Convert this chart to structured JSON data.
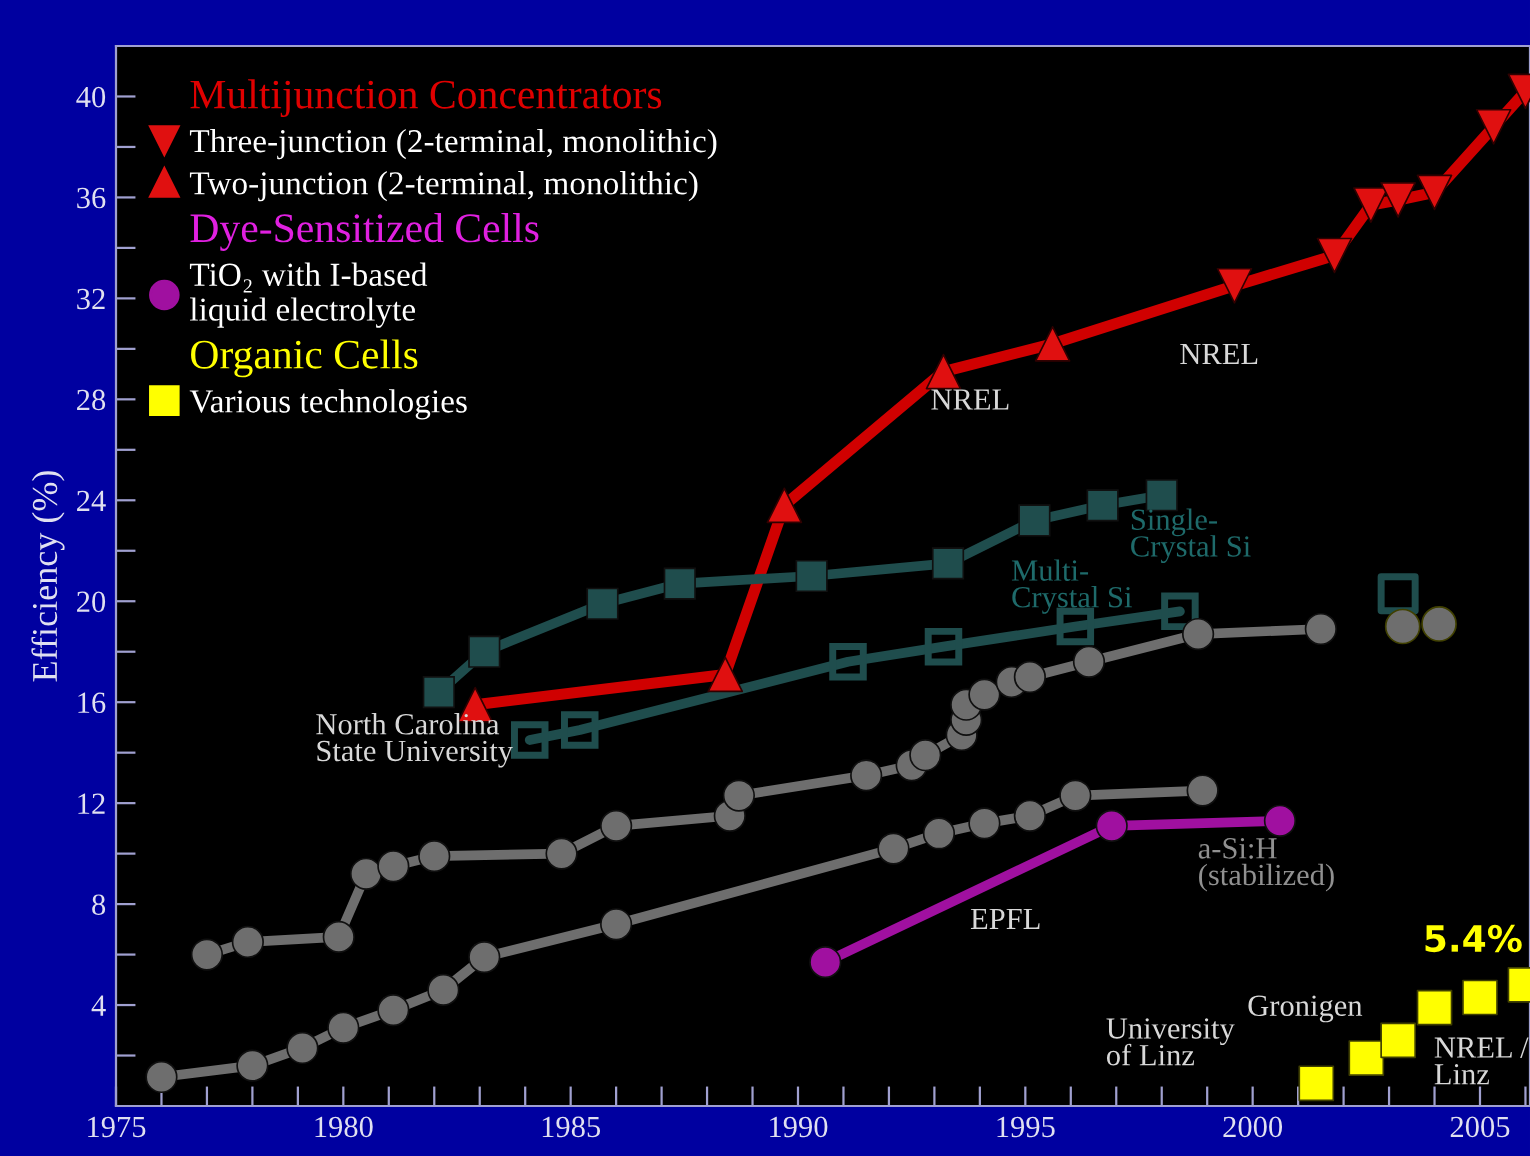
{
  "chart_data": {
    "type": "line",
    "ylabel": "Efficiency (%)",
    "xlim": [
      1975,
      2006.1
    ],
    "ylim": [
      0,
      42
    ],
    "xticks": [
      1975,
      {
        "value": 1976,
        "label": null
      },
      {
        "value": 1977,
        "label": null
      },
      {
        "value": 1978,
        "label": null
      },
      {
        "value": 1979,
        "label": null
      },
      1980,
      {
        "value": 1981,
        "label": null
      },
      {
        "value": 1982,
        "label": null
      },
      {
        "value": 1983,
        "label": null
      },
      {
        "value": 1984,
        "label": null
      },
      1985,
      {
        "value": 1986,
        "label": null
      },
      {
        "value": 1987,
        "label": null
      },
      {
        "value": 1988,
        "label": null
      },
      {
        "value": 1989,
        "label": null
      },
      1990,
      {
        "value": 1991,
        "label": null
      },
      {
        "value": 1992,
        "label": null
      },
      {
        "value": 1993,
        "label": null
      },
      {
        "value": 1994,
        "label": null
      },
      1995,
      {
        "value": 1996,
        "label": null
      },
      {
        "value": 1997,
        "label": null
      },
      {
        "value": 1998,
        "label": null
      },
      {
        "value": 1999,
        "label": null
      },
      2000,
      {
        "value": 2001,
        "label": null
      },
      {
        "value": 2002,
        "label": null
      },
      {
        "value": 2003,
        "label": null
      },
      {
        "value": 2004,
        "label": null
      },
      2005,
      {
        "value": 2006,
        "label": null
      }
    ],
    "yticks": [
      {
        "value": 2,
        "label": null
      },
      4,
      {
        "value": 6,
        "label": null
      },
      8,
      {
        "value": 10,
        "label": null
      },
      12,
      {
        "value": 14,
        "label": null
      },
      16,
      {
        "value": 18,
        "label": null
      },
      20,
      {
        "value": 22,
        "label": null
      },
      24,
      {
        "value": 26,
        "label": null
      },
      28,
      {
        "value": 30,
        "label": null
      },
      32,
      {
        "value": 34,
        "label": null
      },
      36,
      {
        "value": 38,
        "label": null
      },
      40
    ],
    "grid": false,
    "legend": "top left",
    "series": [
      {
        "color": "#d00000",
        "marker": "none",
        "x": [
          1982.9,
          1988.4,
          1989.7,
          1993.2,
          1995.6,
          1999.6,
          2001.8,
          2002.6,
          2003.2,
          2004.0,
          2005.3,
          2006.0
        ],
        "values": [
          15.9,
          17.1,
          23.8,
          29.1,
          30.2,
          32.5,
          33.7,
          35.7,
          35.9,
          36.2,
          38.8,
          40.2
        ]
      },
      {
        "type": "scatter",
        "name": "Three-junction (2-terminal, monolithic)",
        "color": "#e01010",
        "marker": "triangle_down",
        "x": [
          1999.6,
          2001.8,
          2002.6,
          2003.2,
          2004.0,
          2005.3,
          2006.0
        ],
        "values": [
          32.5,
          33.7,
          35.7,
          35.9,
          36.2,
          38.8,
          40.2
        ]
      },
      {
        "type": "scatter",
        "name": "Two-junction (2-terminal, monolithic)",
        "color": "#e01010",
        "marker": "triangle",
        "x": [
          1982.9,
          1988.4,
          1989.7,
          1993.2,
          1995.6
        ],
        "values": [
          15.9,
          17.1,
          23.8,
          29.1,
          30.2
        ]
      },
      {
        "color": "#1f4d4d",
        "marker": "square",
        "x": [
          1982.1,
          1983.1,
          1985.7,
          1987.4,
          1990.3,
          1993.3,
          1995.2,
          1996.7,
          1998.0
        ],
        "values": [
          16.4,
          18.0,
          19.9,
          20.7,
          21.0,
          21.5,
          23.2,
          23.8,
          24.2
        ]
      },
      {
        "color": "#1f4d4d",
        "marker": "square_open",
        "x": [
          1984.1,
          1985.2,
          1991.1,
          1993.2,
          1996.1,
          1998.4
        ],
        "values": [
          14.5,
          14.9,
          17.6,
          18.2,
          19.0,
          19.6
        ]
      },
      {
        "type": "scatter",
        "color": "#1f4d4d",
        "marker": "square_open",
        "x": [
          2003.2
        ],
        "values": [
          20.3
        ]
      },
      {
        "color": "#6e6e6e",
        "marker": "circle",
        "x": [
          1977.0,
          1977.9,
          1979.9,
          1980.5,
          1981.1,
          1982.0,
          1984.8,
          1986.0,
          1988.5,
          1988.7,
          1991.5,
          1992.5,
          1992.8,
          1993.6,
          1993.7,
          1993.7,
          1994.1,
          1994.7,
          1995.1,
          1996.4,
          1998.8,
          2001.5
        ],
        "values": [
          6.0,
          6.5,
          6.7,
          9.2,
          9.5,
          9.9,
          10.0,
          11.1,
          11.5,
          12.3,
          13.1,
          13.5,
          13.9,
          14.7,
          15.3,
          15.9,
          16.3,
          16.8,
          17.0,
          17.6,
          18.7,
          18.9
        ]
      },
      {
        "type": "scatter",
        "color": "#6e6e6e",
        "marker": "circle",
        "x": [
          2003.3,
          2004.1
        ],
        "values": [
          19.0,
          19.1
        ]
      },
      {
        "color": "#6e6e6e",
        "marker": "circle",
        "x": [
          1976.0,
          1978.0,
          1979.1,
          1980.0,
          1981.1,
          1982.2,
          1983.1,
          1986.0,
          1992.1,
          1993.1,
          1994.1,
          1995.1,
          1996.1,
          1998.9
        ],
        "values": [
          1.15,
          1.6,
          2.3,
          3.1,
          3.8,
          4.6,
          5.9,
          7.2,
          10.2,
          10.8,
          11.2,
          11.5,
          12.3,
          12.5
        ]
      },
      {
        "name": "TiO₂ with I-based\nliquid electrolyte",
        "color": "#a010a0",
        "marker": "circle",
        "x": [
          1990.6,
          1996.9,
          2000.6
        ],
        "values": [
          5.7,
          11.1,
          11.3
        ]
      },
      {
        "type": "scatter",
        "name": "Various technologies",
        "color": "#ffff00",
        "marker": "square",
        "x": [
          2001.4,
          2002.5,
          2003.2,
          2004.0,
          2005.0,
          2006.0
        ],
        "values": [
          0.9,
          1.9,
          2.6,
          3.9,
          4.3,
          4.8
        ]
      }
    ],
    "annotations": [
      "Multijunction Concentrators",
      "Dye-Sensitized Cells",
      "Organic Cells",
      "North Carolina\nState University",
      "NREL",
      "NREL",
      "Multi-\nCrystal Si",
      "Single-\nCrystal Si",
      "a-Si:H\n(stabilized)",
      "EPFL",
      "University\nof Linz",
      "Gronigen",
      "NREL /\nLinz",
      "5.4%"
    ]
  }
}
